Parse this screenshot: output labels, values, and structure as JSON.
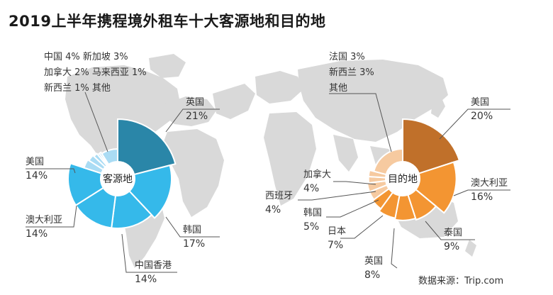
{
  "title": "2019上半年携程境外租车十大客源地和目的地",
  "source": "数据来源：Trip.com",
  "chart_data": [
    {
      "type": "pie",
      "center_label": "客源地",
      "color": "#35b9ea",
      "highlight_color": "#2a86a8",
      "small_color": "#aadcf4",
      "slices": [
        {
          "name": "英国",
          "value": 21
        },
        {
          "name": "韩国",
          "value": 17
        },
        {
          "name": "中国香港",
          "value": 14
        },
        {
          "name": "澳大利亚",
          "value": 14
        },
        {
          "name": "美国",
          "value": 14
        },
        {
          "name": "中国",
          "value": 4
        },
        {
          "name": "新加坡",
          "value": 3
        },
        {
          "name": "加拿大",
          "value": 2
        },
        {
          "name": "马来西亚",
          "value": 1
        },
        {
          "name": "新西兰",
          "value": 1
        },
        {
          "name": "其他",
          "value": null
        }
      ],
      "callouts": [
        {
          "name": "英国",
          "value": "21%"
        },
        {
          "name": "韩国",
          "value": "17%"
        },
        {
          "name": "中国香港",
          "value": "14%"
        },
        {
          "name": "澳大利亚",
          "value": "14%"
        },
        {
          "name": "美国",
          "value": "14%"
        }
      ],
      "small_lines": [
        "中国 4%  新加坡 3%",
        "加拿大 2%  马来西亚 1%",
        "新西兰 1%  其他"
      ]
    },
    {
      "type": "pie",
      "center_label": "目的地",
      "color": "#f39532",
      "highlight_color": "#c0702a",
      "small_color": "#f6caa0",
      "slices": [
        {
          "name": "美国",
          "value": 20
        },
        {
          "name": "澳大利亚",
          "value": 16
        },
        {
          "name": "泰国",
          "value": 9
        },
        {
          "name": "英国",
          "value": 8
        },
        {
          "name": "日本",
          "value": 7
        },
        {
          "name": "韩国",
          "value": 5
        },
        {
          "name": "西班牙",
          "value": 4
        },
        {
          "name": "加拿大",
          "value": 4
        },
        {
          "name": "法国",
          "value": 3
        },
        {
          "name": "新西兰",
          "value": 3
        },
        {
          "name": "其他",
          "value": null
        }
      ],
      "callouts": [
        {
          "name": "美国",
          "value": "20%"
        },
        {
          "name": "澳大利亚",
          "value": "16%"
        },
        {
          "name": "泰国",
          "value": "9%"
        },
        {
          "name": "英国",
          "value": "8%"
        },
        {
          "name": "日本",
          "value": "7%"
        },
        {
          "name": "韩国",
          "value": "5%"
        },
        {
          "name": "西班牙",
          "value": "4%"
        },
        {
          "name": "加拿大",
          "value": "4%"
        }
      ],
      "small_lines": [
        "法国 3%",
        "新西兰 3%",
        "其他"
      ]
    }
  ]
}
